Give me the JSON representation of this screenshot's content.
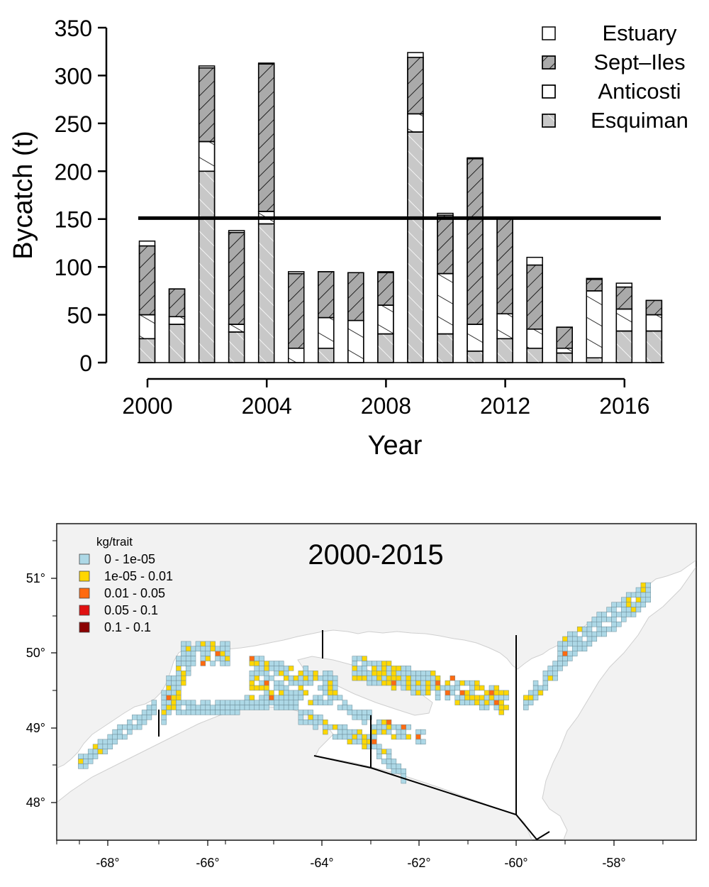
{
  "chart_data": [
    {
      "type": "bar",
      "stacked": true,
      "xlabel": "Year",
      "ylabel": "Bycatch (t)",
      "ylim": [
        0,
        350
      ],
      "yticks": [
        0,
        50,
        100,
        150,
        200,
        250,
        300,
        350
      ],
      "xticks": [
        2000,
        2004,
        2008,
        2012,
        2016
      ],
      "categories": [
        2000,
        2001,
        2002,
        2003,
        2004,
        2005,
        2006,
        2007,
        2008,
        2009,
        2010,
        2011,
        2012,
        2013,
        2014,
        2015,
        2016,
        2017
      ],
      "reference_line": 151,
      "legend_position": "top-right",
      "series": [
        {
          "name": "Esquiman",
          "fill": "#c8c8c8",
          "hatch": "diagonal-white",
          "values": [
            25,
            40,
            200,
            32,
            145,
            0,
            15,
            0,
            30,
            241,
            30,
            12,
            25,
            15,
            10,
            5,
            33,
            33
          ]
        },
        {
          "name": "Anticosti",
          "fill": "#ffffff",
          "hatch": "diagonal-black",
          "values": [
            25,
            8,
            31,
            8,
            13,
            15,
            32,
            44,
            30,
            19,
            63,
            28,
            26,
            20,
            5,
            70,
            23,
            17
          ]
        },
        {
          "name": "Sept–Iles",
          "fill": "#aaaaaa",
          "hatch": "diagonal-black",
          "values": [
            72,
            29,
            77,
            96,
            154,
            78,
            48,
            50,
            34,
            59,
            61,
            173,
            99,
            67,
            22,
            12,
            23,
            15
          ]
        },
        {
          "name": "Estuary",
          "fill": "#ffffff",
          "hatch": "none",
          "values": [
            5,
            0,
            2,
            2,
            1,
            2,
            0,
            0,
            1,
            5,
            2,
            1,
            0,
            8,
            0,
            1,
            4,
            0
          ]
        }
      ]
    },
    {
      "type": "heatmap",
      "subtype": "map",
      "title": "2000-2015",
      "legend_title": "kg/trait",
      "legend": [
        {
          "label": "0 - 1e-05",
          "color": "#add8e6"
        },
        {
          "label": "1e-05 - 0.01",
          "color": "#ffd700"
        },
        {
          "label": "0.01 - 0.05",
          "color": "#ff6a10"
        },
        {
          "label": "0.05 - 0.1",
          "color": "#e01010"
        },
        {
          "label": "0.1 - 0.1",
          "color": "#8b0000"
        }
      ],
      "x_ticks": [
        "-68°",
        "-66°",
        "-64°",
        "-62°",
        "-60°",
        "-58°"
      ],
      "y_ticks": [
        "48°",
        "49°",
        "50°",
        "51°"
      ],
      "lon_range": [
        -69.5,
        -56.7
      ],
      "lat_range": [
        47.5,
        51.8
      ]
    }
  ]
}
